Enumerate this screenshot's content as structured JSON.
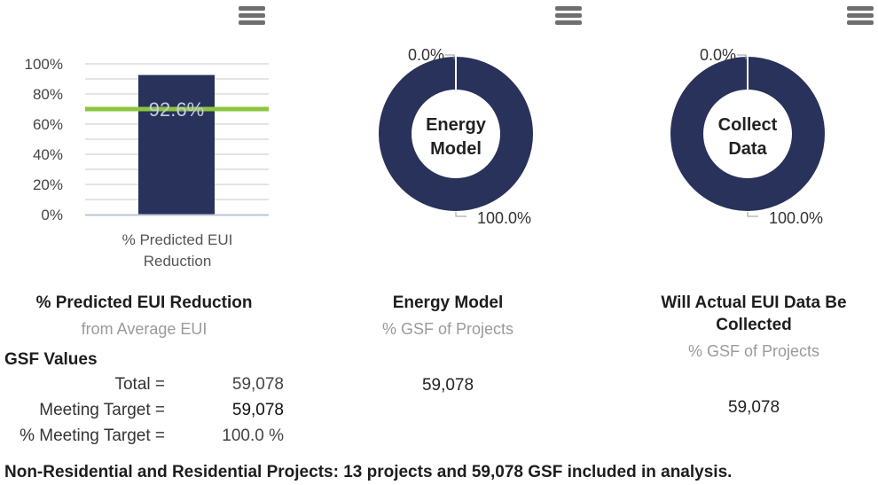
{
  "icons": {
    "menu": "hamburger-menu-icon"
  },
  "colors": {
    "bar": "#28325a",
    "donut": "#28325a",
    "target_line": "#8cc63f",
    "grid": "#c8c8c8",
    "axis_text": "#444444",
    "bar_label": "#c9cde0"
  },
  "chart_data": [
    {
      "type": "bar",
      "categories": [
        "% Predicted EUI Reduction"
      ],
      "values": [
        92.6
      ],
      "data_labels": [
        "92.6%"
      ],
      "target_line": 70,
      "ylim": [
        0,
        100
      ],
      "ytick_labels": [
        "100%",
        "80%",
        "60%",
        "40%",
        "20%",
        "0%"
      ],
      "xtick_label_lines": [
        "% Predicted EUI",
        "Reduction"
      ],
      "grid": true
    },
    {
      "type": "pie",
      "center_label_lines": [
        "Energy",
        "Model"
      ],
      "slices": [
        {
          "label": "0.0%",
          "value": 0.0
        },
        {
          "label": "100.0%",
          "value": 100.0
        }
      ]
    },
    {
      "type": "pie",
      "center_label_lines": [
        "Collect",
        "Data"
      ],
      "slices": [
        {
          "label": "0.0%",
          "value": 0.0
        },
        {
          "label": "100.0%",
          "value": 100.0
        }
      ]
    }
  ],
  "panels": {
    "left": {
      "title": "% Predicted EUI Reduction",
      "subtitle": "from Average EUI"
    },
    "middle": {
      "title": "Energy Model",
      "subtitle": "% GSF of Projects",
      "value": "59,078"
    },
    "right": {
      "title_line1": "Will Actual EUI Data Be",
      "title_line2": "Collected",
      "subtitle": "% GSF of Projects",
      "value": "59,078"
    }
  },
  "gsf": {
    "heading": "GSF Values",
    "rows": [
      {
        "label": "Total =",
        "value": "59,078"
      },
      {
        "label": "Meeting Target =",
        "value": "59,078"
      },
      {
        "label": "% Meeting Target =",
        "value": "100.0 %"
      }
    ]
  },
  "footer": "Non-Residential and Residential Projects: 13 projects and 59,078 GSF included in analysis."
}
